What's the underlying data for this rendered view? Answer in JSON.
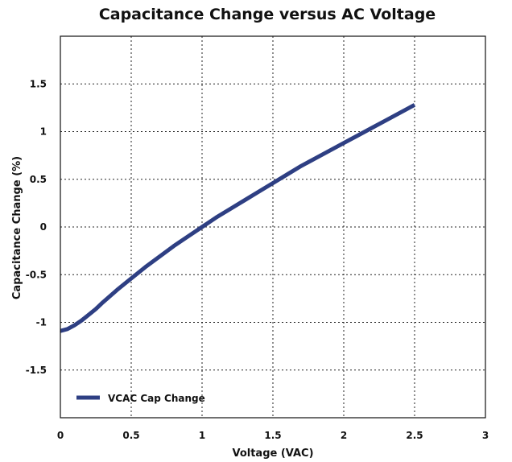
{
  "chart_data": {
    "type": "line",
    "title": "Capacitance Change versus AC Voltage",
    "xlabel": "Voltage (VAC)",
    "ylabel": "Capacitance Change (%)",
    "xlim": [
      0,
      3
    ],
    "ylim": [
      -2,
      2
    ],
    "xticks": [
      0,
      0.5,
      1,
      1.5,
      2,
      2.5,
      3
    ],
    "xtick_labels": [
      "0",
      "0.5",
      "1",
      "1.5",
      "2",
      "2.5",
      "3"
    ],
    "yticks": [
      -1.5,
      -1,
      -0.5,
      0,
      0.5,
      1,
      1.5
    ],
    "ytick_labels": [
      "-1.5",
      "-1",
      "-0.5",
      "0",
      "0.5",
      "1",
      "1.5"
    ],
    "grid": true,
    "legend_position": "bottom-left",
    "series": [
      {
        "name": "VCAC Cap Change",
        "color": "#2e3f83",
        "x": [
          0,
          0.05,
          0.1,
          0.15,
          0.2,
          0.25,
          0.3,
          0.4,
          0.5,
          0.6,
          0.7,
          0.8,
          0.9,
          1.0,
          1.1,
          1.2,
          1.3,
          1.4,
          1.5,
          1.6,
          1.7,
          1.8,
          1.9,
          2.0,
          2.1,
          2.2,
          2.3,
          2.4,
          2.5
        ],
        "y": [
          -1.09,
          -1.07,
          -1.03,
          -0.98,
          -0.92,
          -0.86,
          -0.79,
          -0.66,
          -0.54,
          -0.42,
          -0.31,
          -0.2,
          -0.1,
          0.0,
          0.1,
          0.19,
          0.28,
          0.37,
          0.46,
          0.55,
          0.64,
          0.72,
          0.8,
          0.88,
          0.96,
          1.04,
          1.12,
          1.2,
          1.28
        ]
      }
    ]
  }
}
